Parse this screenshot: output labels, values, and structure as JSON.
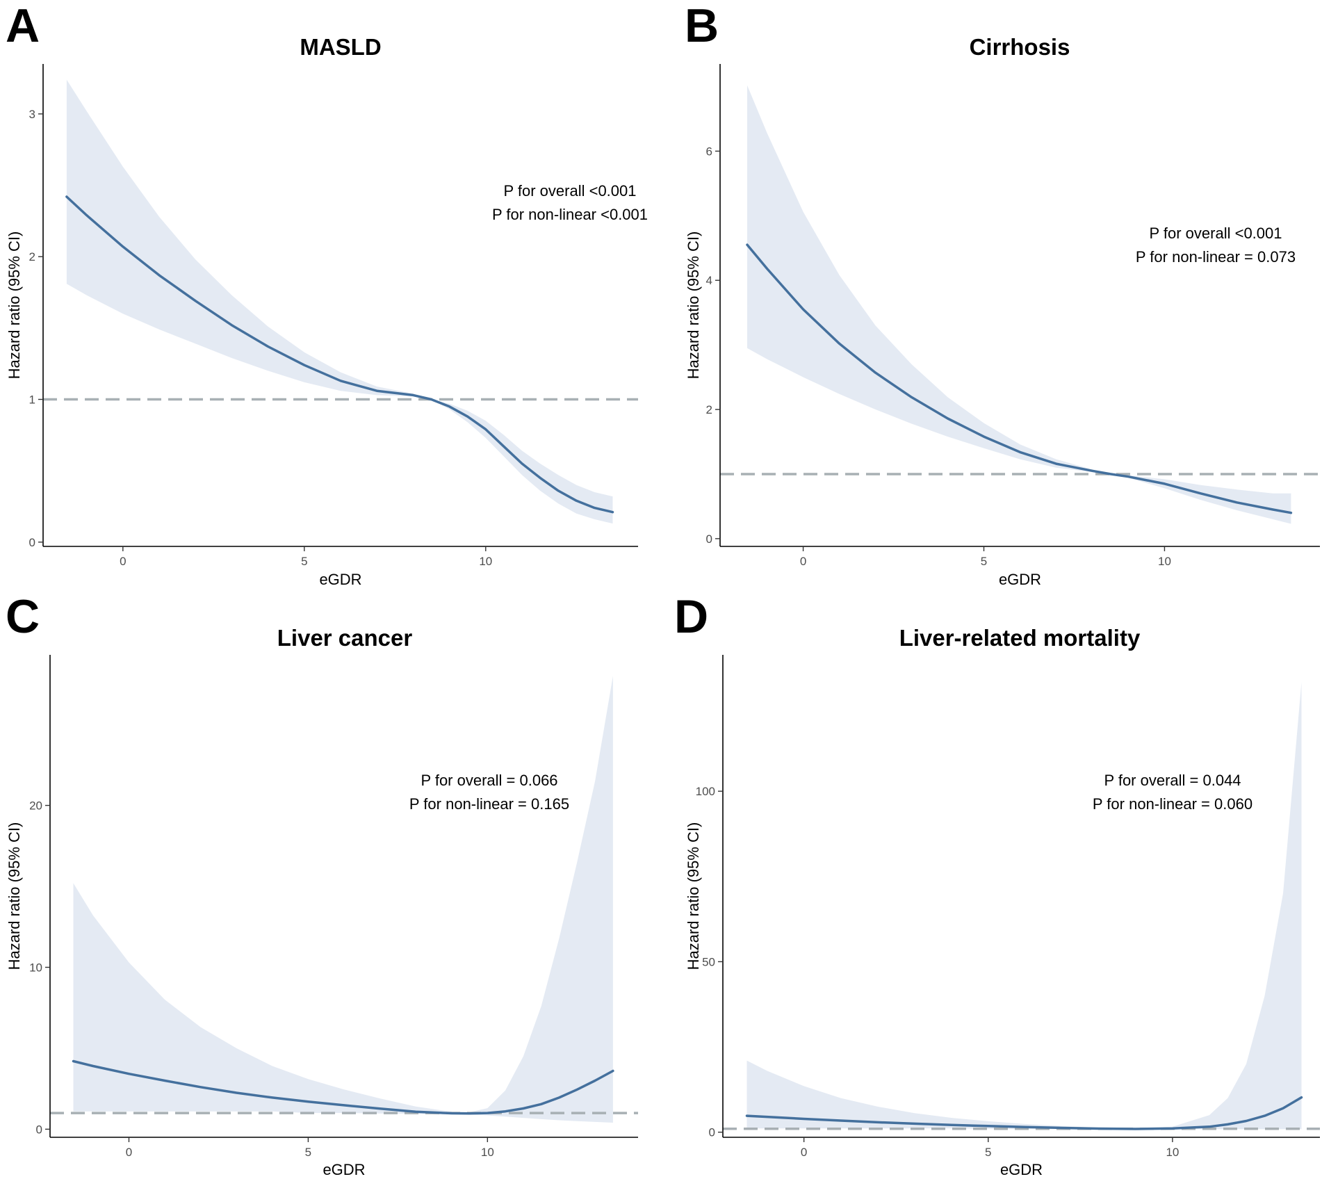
{
  "colors": {
    "line": "#44709d",
    "band": "#e4eaf3",
    "ref": "#a8b0b4",
    "axis": "#000000"
  },
  "chart_data": [
    {
      "type": "line",
      "letter": "A",
      "title": "MASLD",
      "xlabel": "eGDR",
      "ylabel": "Hazard ratio (95% CI)",
      "xlim": [
        -2.2,
        14.2
      ],
      "ylim": [
        -0.03,
        3.35
      ],
      "xticks": [
        0,
        5,
        10
      ],
      "xtick_labels": [
        "0",
        "5",
        "10"
      ],
      "yticks": [
        0,
        1,
        2,
        3
      ],
      "ytick_labels": [
        "0",
        "1",
        "2",
        "3"
      ],
      "reference_line": 1,
      "annotations": [
        "P for overall <0.001",
        "P for non-linear <0.001"
      ],
      "series": [
        {
          "name": "HR",
          "x": [
            -1.55,
            -1,
            0,
            1,
            2,
            3,
            4,
            5,
            6,
            7,
            8,
            8.5,
            9,
            9.5,
            10,
            10.5,
            11,
            11.5,
            12,
            12.5,
            13,
            13.5
          ],
          "y": [
            2.42,
            2.29,
            2.07,
            1.87,
            1.69,
            1.52,
            1.37,
            1.24,
            1.13,
            1.06,
            1.03,
            1.0,
            0.95,
            0.88,
            0.79,
            0.67,
            0.55,
            0.45,
            0.36,
            0.29,
            0.24,
            0.21
          ],
          "lower": [
            1.81,
            1.73,
            1.6,
            1.49,
            1.39,
            1.29,
            1.2,
            1.12,
            1.06,
            1.03,
            1.02,
            1.0,
            0.93,
            0.84,
            0.73,
            0.6,
            0.47,
            0.36,
            0.27,
            0.2,
            0.16,
            0.13
          ],
          "upper": [
            3.24,
            3.02,
            2.63,
            2.28,
            1.98,
            1.73,
            1.51,
            1.33,
            1.19,
            1.09,
            1.04,
            1.0,
            0.97,
            0.92,
            0.85,
            0.75,
            0.64,
            0.55,
            0.47,
            0.4,
            0.35,
            0.32
          ]
        }
      ]
    },
    {
      "type": "line",
      "letter": "B",
      "title": "Cirrhosis",
      "xlabel": "eGDR",
      "ylabel": "Hazard ratio (95% CI)",
      "xlim": [
        -2.3,
        14.3
      ],
      "ylim": [
        -0.12,
        7.35
      ],
      "xticks": [
        0,
        5,
        10
      ],
      "xtick_labels": [
        "0",
        "5",
        "10"
      ],
      "yticks": [
        0,
        2,
        4,
        6
      ],
      "ytick_labels": [
        "0",
        "2",
        "4",
        "6"
      ],
      "reference_line": 1,
      "annotations": [
        "P for overall <0.001",
        "P for non-linear = 0.073"
      ],
      "series": [
        {
          "name": "HR",
          "x": [
            -1.55,
            -1,
            0,
            1,
            2,
            3,
            4,
            5,
            6,
            7,
            8,
            8.5,
            9,
            10,
            11,
            12,
            13,
            13.5
          ],
          "y": [
            4.55,
            4.18,
            3.55,
            3.02,
            2.57,
            2.19,
            1.86,
            1.58,
            1.34,
            1.16,
            1.05,
            1.0,
            0.96,
            0.85,
            0.7,
            0.56,
            0.45,
            0.4
          ],
          "lower": [
            2.95,
            2.78,
            2.5,
            2.24,
            2.0,
            1.78,
            1.58,
            1.4,
            1.23,
            1.1,
            1.03,
            1.0,
            0.94,
            0.78,
            0.6,
            0.44,
            0.3,
            0.23
          ],
          "upper": [
            7.02,
            6.28,
            5.06,
            4.08,
            3.3,
            2.7,
            2.19,
            1.79,
            1.46,
            1.23,
            1.07,
            1.0,
            0.98,
            0.92,
            0.83,
            0.76,
            0.7,
            0.7
          ]
        }
      ]
    },
    {
      "type": "line",
      "letter": "C",
      "title": "Liver cancer",
      "xlabel": "eGDR",
      "ylabel": "Hazard ratio (95% CI)",
      "xlim": [
        -2.2,
        14.2
      ],
      "ylim": [
        -0.5,
        29.3
      ],
      "xticks": [
        0,
        5,
        10
      ],
      "xtick_labels": [
        "0",
        "5",
        "10"
      ],
      "yticks": [
        0,
        10,
        20
      ],
      "ytick_labels": [
        "0",
        "10",
        "20"
      ],
      "reference_line": 1,
      "annotations": [
        "P for overall = 0.066",
        "P for non-linear = 0.165"
      ],
      "series": [
        {
          "name": "HR",
          "x": [
            -1.55,
            -1,
            0,
            1,
            2,
            3,
            4,
            5,
            6,
            7,
            8,
            9,
            9.5,
            10,
            10.5,
            11,
            11.5,
            12,
            12.5,
            13,
            13.5
          ],
          "y": [
            4.2,
            3.9,
            3.42,
            3.0,
            2.6,
            2.25,
            1.95,
            1.7,
            1.48,
            1.27,
            1.08,
            0.98,
            0.97,
            1.0,
            1.1,
            1.28,
            1.55,
            1.95,
            2.45,
            3.0,
            3.6
          ],
          "lower": [
            1.1,
            1.1,
            1.1,
            1.1,
            1.1,
            1.1,
            1.1,
            1.0,
            1.0,
            0.97,
            0.95,
            0.92,
            0.9,
            0.85,
            0.78,
            0.7,
            0.62,
            0.55,
            0.5,
            0.45,
            0.4
          ],
          "upper": [
            15.2,
            13.2,
            10.3,
            8.0,
            6.3,
            5.0,
            3.9,
            3.1,
            2.45,
            1.9,
            1.4,
            1.08,
            1.05,
            1.3,
            2.4,
            4.5,
            7.6,
            11.8,
            16.5,
            21.5,
            28.0
          ]
        }
      ]
    },
    {
      "type": "line",
      "letter": "D",
      "title": "Liver-related mortality",
      "xlabel": "eGDR",
      "ylabel": "Hazard ratio (95% CI)",
      "xlim": [
        -2.2,
        14.0
      ],
      "ylim": [
        -1.5,
        140
      ],
      "xticks": [
        0,
        5,
        10
      ],
      "xtick_labels": [
        "0",
        "5",
        "10"
      ],
      "yticks": [
        0,
        50,
        100
      ],
      "ytick_labels": [
        "0",
        "50",
        "100"
      ],
      "reference_line": 1,
      "annotations": [
        "P for overall = 0.044",
        "P for non-linear = 0.060"
      ],
      "series": [
        {
          "name": "HR",
          "x": [
            -1.55,
            -1,
            0,
            1,
            2,
            3,
            4,
            5,
            6,
            7,
            8,
            9,
            10,
            11,
            11.5,
            12,
            12.5,
            13,
            13.5
          ],
          "y": [
            4.8,
            4.5,
            3.9,
            3.4,
            2.9,
            2.5,
            2.1,
            1.8,
            1.5,
            1.25,
            1.05,
            0.95,
            1.1,
            1.6,
            2.3,
            3.3,
            4.8,
            7.0,
            10.2
          ],
          "lower": [
            1.1,
            1.1,
            1.1,
            1.1,
            1.1,
            1.1,
            1.1,
            1.0,
            1.0,
            1.0,
            0.95,
            0.9,
            0.9,
            0.9,
            0.9,
            0.9,
            0.9,
            0.9,
            0.9
          ],
          "upper": [
            21,
            18,
            13.5,
            10,
            7.5,
            5.6,
            4.2,
            3.2,
            2.4,
            1.8,
            1.3,
            1.1,
            1.6,
            5,
            10,
            20,
            40,
            70,
            132
          ]
        }
      ]
    }
  ]
}
